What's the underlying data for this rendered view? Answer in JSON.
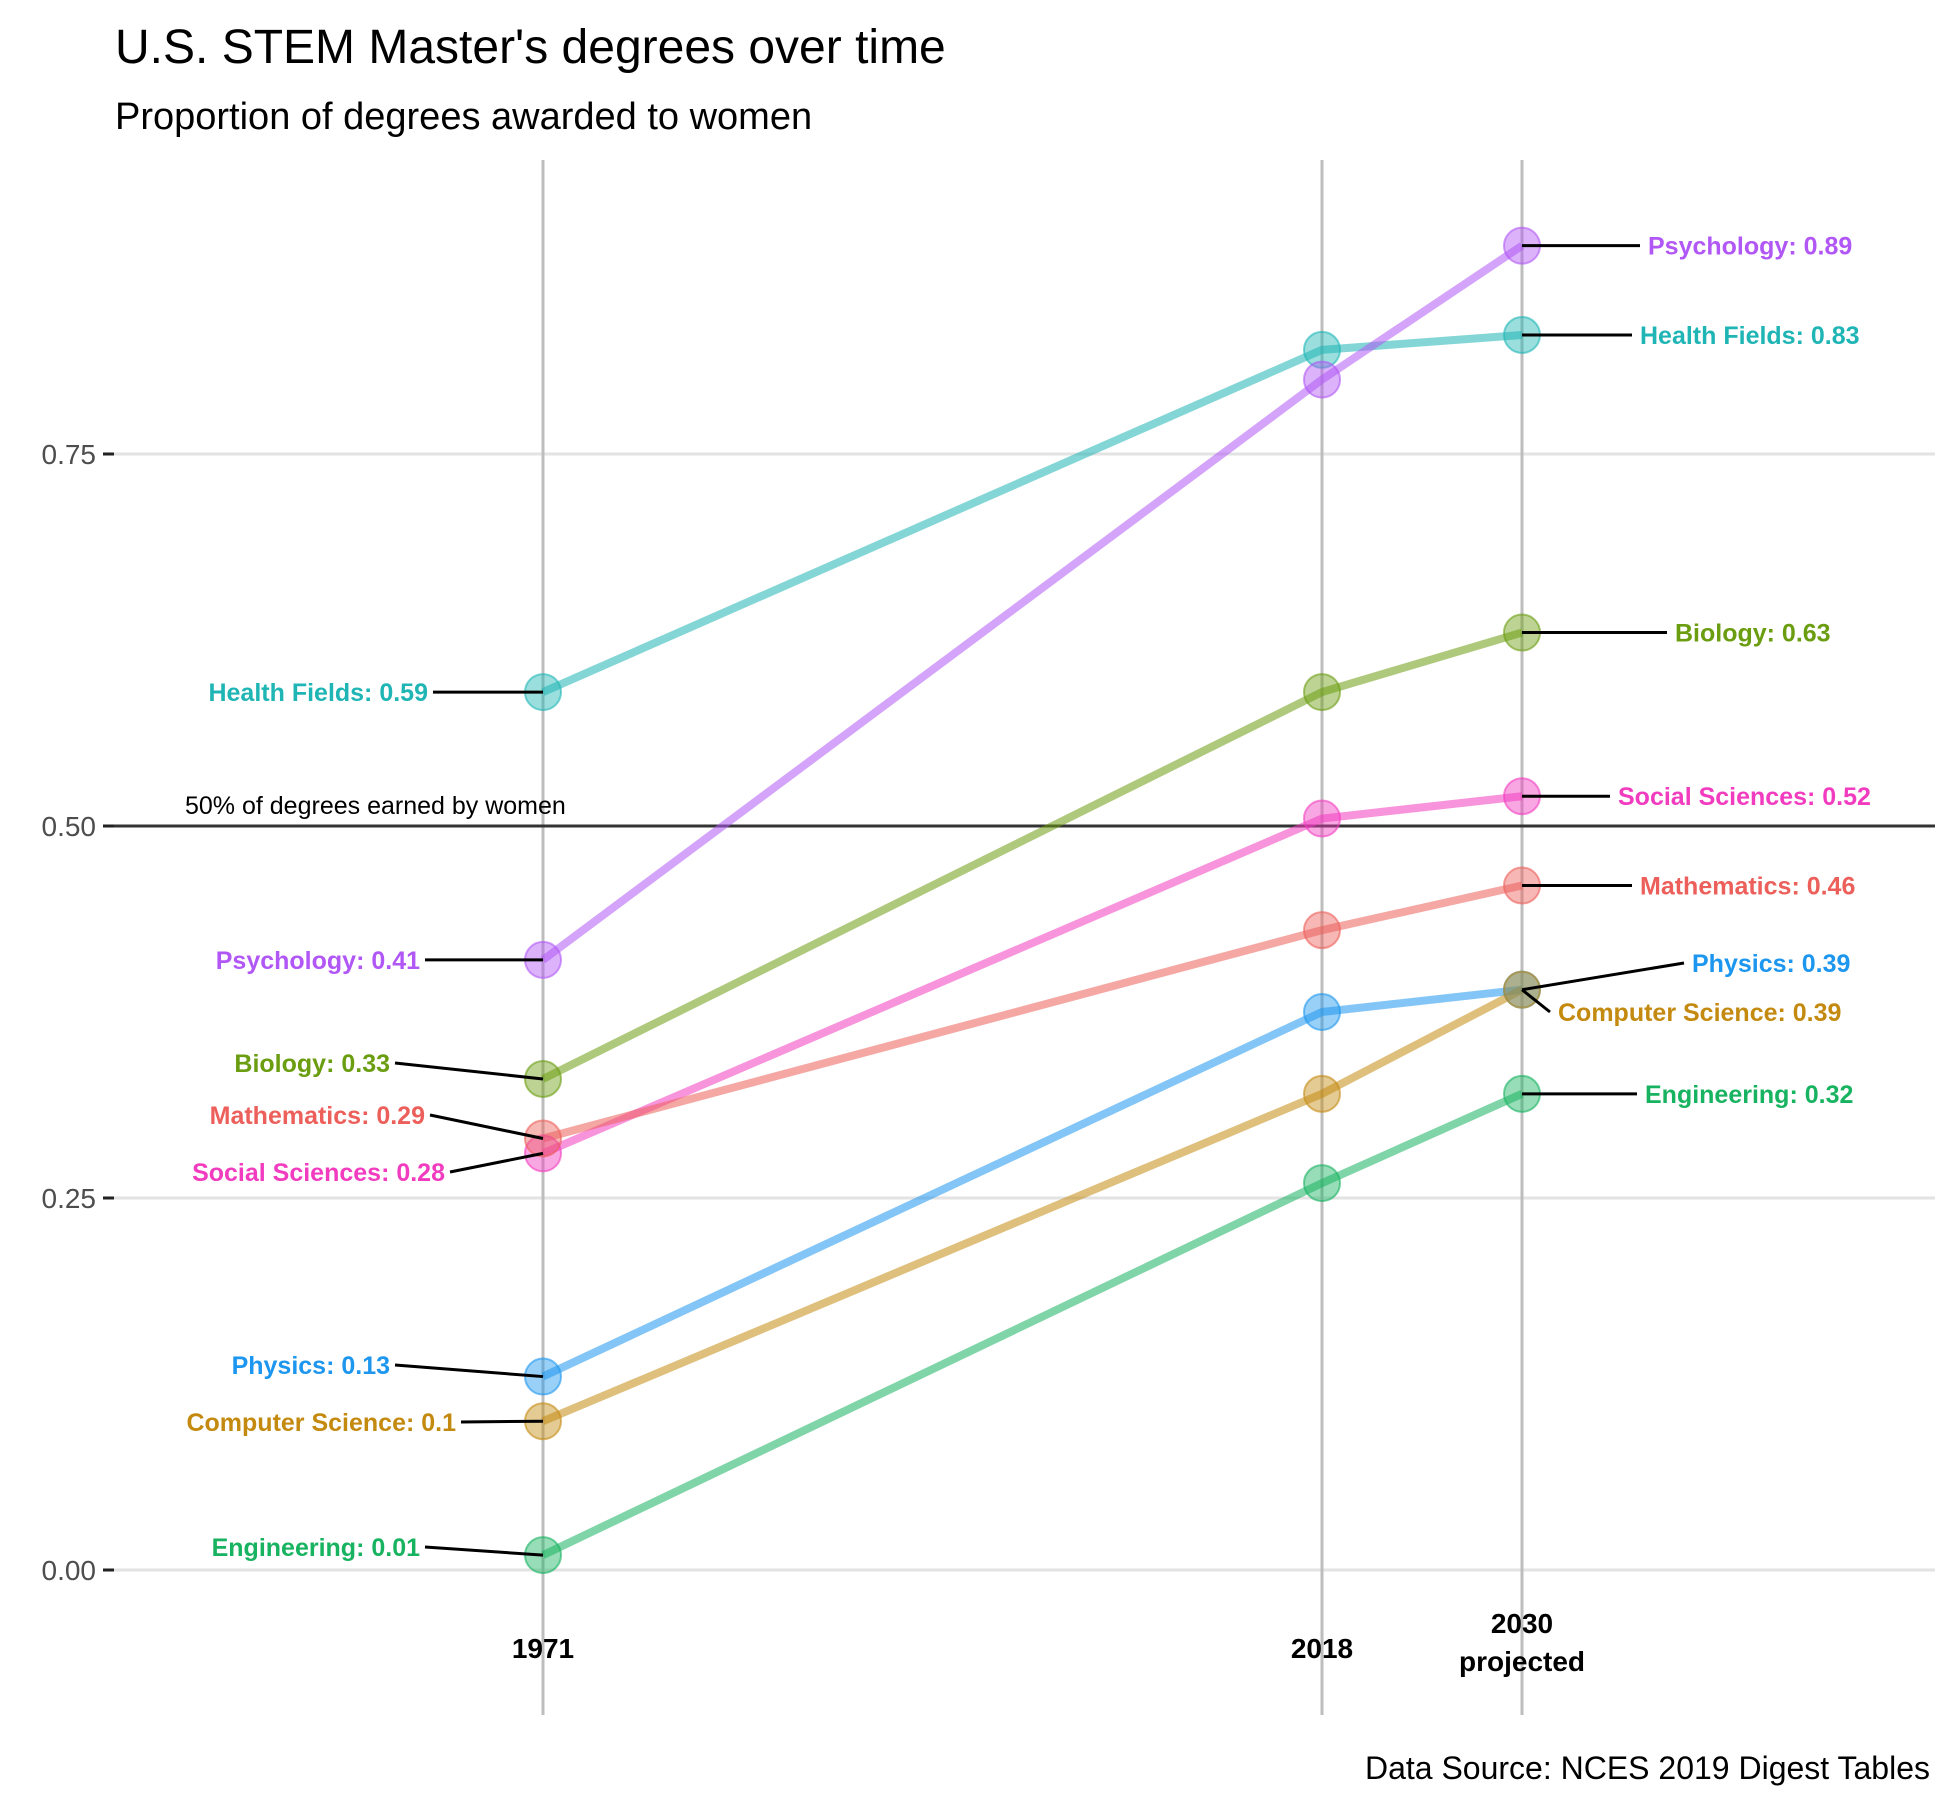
{
  "chart_data": {
    "type": "line",
    "title": "U.S. STEM Master's degrees over time",
    "subtitle": "Proportion of degrees awarded to women",
    "caption": "Data Source: NCES 2019 Digest Tables",
    "xlabel": "",
    "ylabel": "",
    "x_categories": [
      {
        "year": 1971,
        "lines": [
          "1971"
        ]
      },
      {
        "year": 2018,
        "lines": [
          "2018"
        ]
      },
      {
        "year": 2030,
        "lines": [
          "2030",
          "projected"
        ]
      }
    ],
    "y_ticks": [
      "0.00",
      "0.25",
      "0.50",
      "0.75"
    ],
    "ylim": [
      -0.08,
      0.95
    ],
    "reference_line": {
      "y": 0.5,
      "label": "50% of degrees earned by women"
    },
    "grid": true,
    "legend": "none",
    "series": [
      {
        "name": "Health Fields",
        "color": "#1fb5b5",
        "values": [
          0.59,
          0.82,
          0.83
        ],
        "label_1971": "Health Fields: 0.59",
        "label_2030": "Health Fields: 0.83"
      },
      {
        "name": "Psychology",
        "color": "#b157f5",
        "values": [
          0.41,
          0.8,
          0.89
        ],
        "label_1971": "Psychology: 0.41",
        "label_2030": "Psychology: 0.89"
      },
      {
        "name": "Biology",
        "color": "#6b9d10",
        "values": [
          0.33,
          0.59,
          0.63
        ],
        "label_1971": "Biology: 0.33",
        "label_2030": "Biology: 0.63"
      },
      {
        "name": "Social Sciences",
        "color": "#f23cc0",
        "values": [
          0.28,
          0.505,
          0.52
        ],
        "label_1971": "Social Sciences: 0.28",
        "label_2030": "Social Sciences: 0.52"
      },
      {
        "name": "Mathematics",
        "color": "#ec5f5a",
        "values": [
          0.29,
          0.43,
          0.46
        ],
        "label_1971": "Mathematics: 0.29",
        "label_2030": "Mathematics: 0.46"
      },
      {
        "name": "Physics",
        "color": "#1c96ee",
        "values": [
          0.13,
          0.375,
          0.39
        ],
        "label_1971": "Physics: 0.13",
        "label_2030": "Physics: 0.39"
      },
      {
        "name": "Computer Science",
        "color": "#c48a10",
        "values": [
          0.1,
          0.32,
          0.39
        ],
        "label_1971": "Computer Science: 0.1",
        "label_2030": "Computer Science: 0.39"
      },
      {
        "name": "Engineering",
        "color": "#18b360",
        "values": [
          0.01,
          0.26,
          0.32
        ],
        "label_1971": "Engineering: 0.01",
        "label_2030": "Engineering: 0.32"
      }
    ]
  }
}
